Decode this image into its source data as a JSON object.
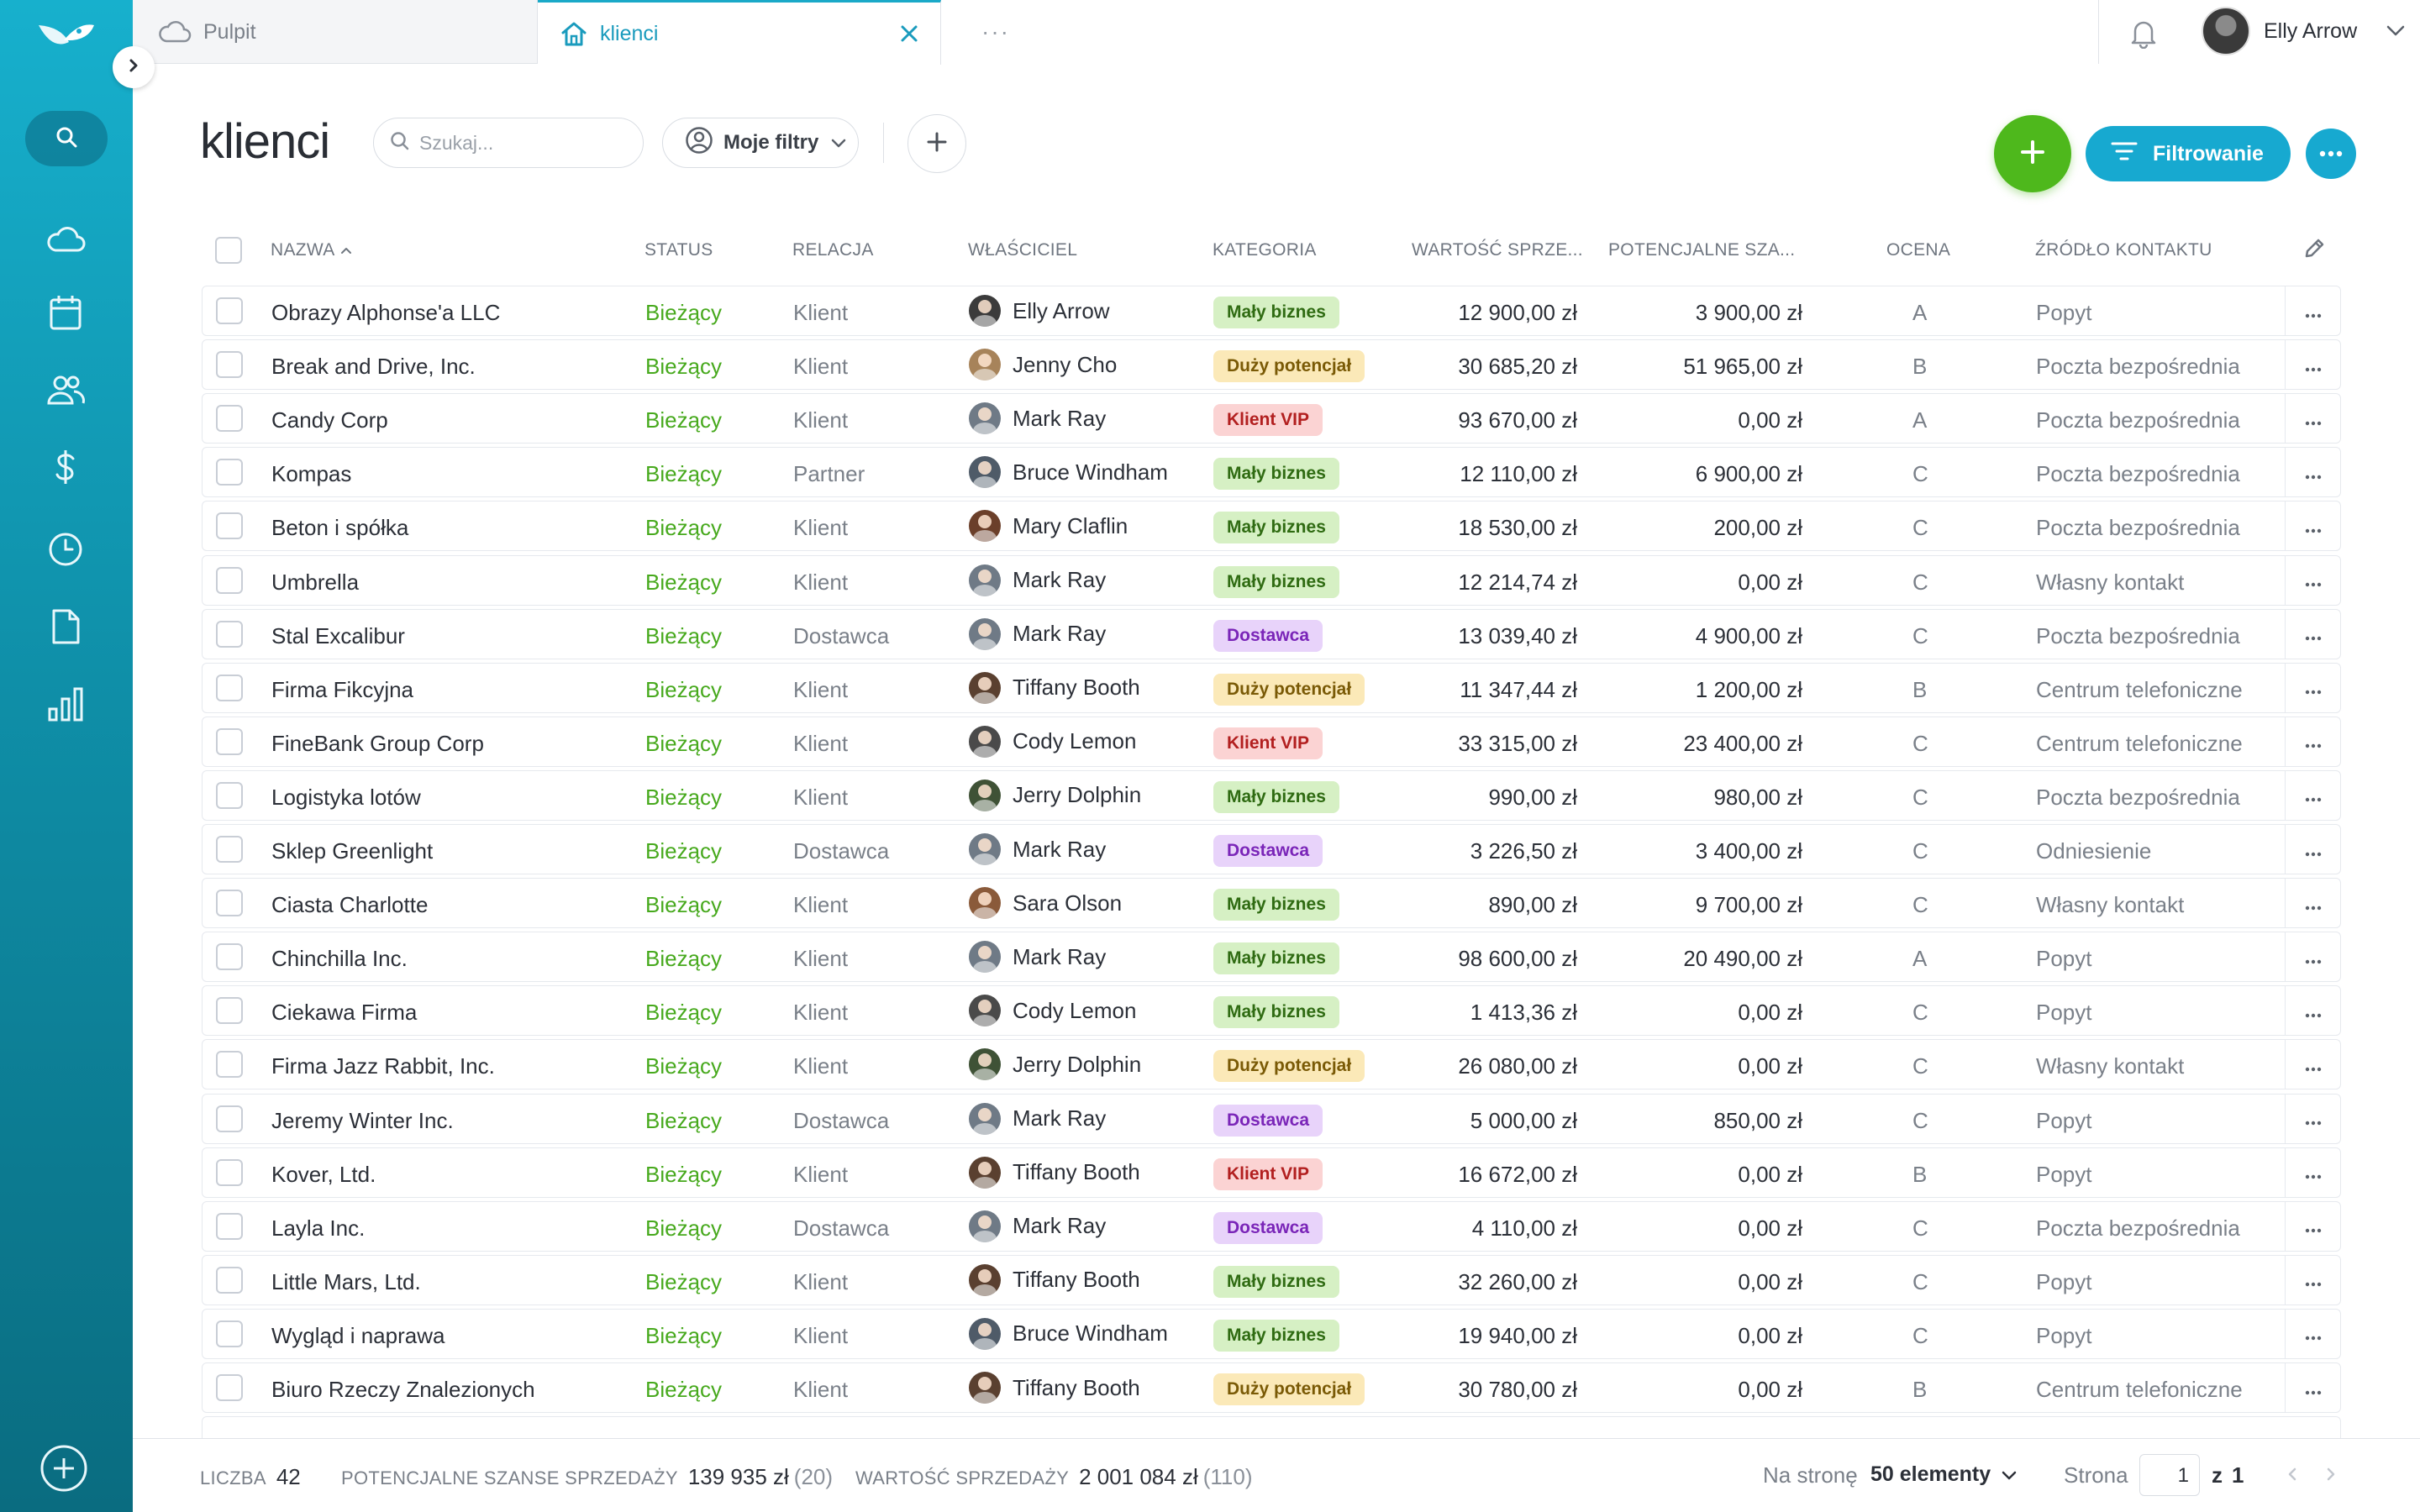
{
  "colors": {
    "accent": "#17a9d0",
    "add_green": "#4eb81c",
    "status_green": "#47a91d"
  },
  "tabs": {
    "home_label": "Pulpit",
    "active_label": "klienci",
    "more_label": "···"
  },
  "user": {
    "name": "Elly Arrow"
  },
  "page": {
    "title": "klienci"
  },
  "toolbar": {
    "search_placeholder": "Szukaj...",
    "my_filters_label": "Moje filtry",
    "filter_button_label": "Filtrowanie"
  },
  "table": {
    "columns": {
      "name": "NAZWA",
      "status": "STATUS",
      "relation": "RELACJA",
      "owner": "WŁAŚCICIEL",
      "category": "KATEGORIA",
      "value": "WARTOŚĆ SPRZE...",
      "potential": "POTENCJALNE SZA...",
      "rating": "OCENA",
      "source": "ŹRÓDŁO KONTAKTU"
    },
    "rows": [
      {
        "name": "Obrazy Alphonse'a LLC",
        "status": "Bieżący",
        "relation": "Klient",
        "owner": "Elly Arrow",
        "category": "Mały biznes",
        "value": "12 900,00 zł",
        "potential": "3 900,00 zł",
        "rating": "A",
        "source": "Popyt"
      },
      {
        "name": "Break and Drive, Inc.",
        "status": "Bieżący",
        "relation": "Klient",
        "owner": "Jenny Cho",
        "category": "Duży potencjał",
        "value": "30 685,20 zł",
        "potential": "51 965,00 zł",
        "rating": "B",
        "source": "Poczta bezpośrednia"
      },
      {
        "name": "Candy Corp",
        "status": "Bieżący",
        "relation": "Klient",
        "owner": "Mark Ray",
        "category": "Klient VIP",
        "value": "93 670,00 zł",
        "potential": "0,00 zł",
        "rating": "A",
        "source": "Poczta bezpośrednia"
      },
      {
        "name": "Kompas",
        "status": "Bieżący",
        "relation": "Partner",
        "owner": "Bruce Windham",
        "category": "Mały biznes",
        "value": "12 110,00 zł",
        "potential": "6 900,00 zł",
        "rating": "C",
        "source": "Poczta bezpośrednia"
      },
      {
        "name": "Beton i spółka",
        "status": "Bieżący",
        "relation": "Klient",
        "owner": "Mary Claflin",
        "category": "Mały biznes",
        "value": "18 530,00 zł",
        "potential": "200,00 zł",
        "rating": "C",
        "source": "Poczta bezpośrednia"
      },
      {
        "name": "Umbrella",
        "status": "Bieżący",
        "relation": "Klient",
        "owner": "Mark Ray",
        "category": "Mały biznes",
        "value": "12 214,74 zł",
        "potential": "0,00 zł",
        "rating": "C",
        "source": "Własny kontakt"
      },
      {
        "name": "Stal Excalibur",
        "status": "Bieżący",
        "relation": "Dostawca",
        "owner": "Mark Ray",
        "category": "Dostawca",
        "value": "13 039,40 zł",
        "potential": "4 900,00 zł",
        "rating": "C",
        "source": "Poczta bezpośrednia"
      },
      {
        "name": "Firma Fikcyjna",
        "status": "Bieżący",
        "relation": "Klient",
        "owner": "Tiffany Booth",
        "category": "Duży potencjał",
        "value": "11 347,44 zł",
        "potential": "1 200,00 zł",
        "rating": "B",
        "source": "Centrum telefoniczne"
      },
      {
        "name": "FineBank Group Corp",
        "status": "Bieżący",
        "relation": "Klient",
        "owner": "Cody Lemon",
        "category": "Klient VIP",
        "value": "33 315,00 zł",
        "potential": "23 400,00 zł",
        "rating": "C",
        "source": "Centrum telefoniczne"
      },
      {
        "name": "Logistyka lotów",
        "status": "Bieżący",
        "relation": "Klient",
        "owner": "Jerry Dolphin",
        "category": "Mały biznes",
        "value": "990,00 zł",
        "potential": "980,00 zł",
        "rating": "C",
        "source": "Poczta bezpośrednia"
      },
      {
        "name": "Sklep Greenlight",
        "status": "Bieżący",
        "relation": "Dostawca",
        "owner": "Mark Ray",
        "category": "Dostawca",
        "value": "3 226,50 zł",
        "potential": "3 400,00 zł",
        "rating": "C",
        "source": "Odniesienie"
      },
      {
        "name": "Ciasta Charlotte",
        "status": "Bieżący",
        "relation": "Klient",
        "owner": "Sara Olson",
        "category": "Mały biznes",
        "value": "890,00 zł",
        "potential": "9 700,00 zł",
        "rating": "C",
        "source": "Własny kontakt"
      },
      {
        "name": "Chinchilla Inc.",
        "status": "Bieżący",
        "relation": "Klient",
        "owner": "Mark Ray",
        "category": "Mały biznes",
        "value": "98 600,00 zł",
        "potential": "20 490,00 zł",
        "rating": "A",
        "source": "Popyt"
      },
      {
        "name": "Ciekawa Firma",
        "status": "Bieżący",
        "relation": "Klient",
        "owner": "Cody Lemon",
        "category": "Mały biznes",
        "value": "1 413,36 zł",
        "potential": "0,00 zł",
        "rating": "C",
        "source": "Popyt"
      },
      {
        "name": "Firma Jazz Rabbit, Inc.",
        "status": "Bieżący",
        "relation": "Klient",
        "owner": "Jerry Dolphin",
        "category": "Duży potencjał",
        "value": "26 080,00 zł",
        "potential": "0,00 zł",
        "rating": "C",
        "source": "Własny kontakt"
      },
      {
        "name": "Jeremy Winter Inc.",
        "status": "Bieżący",
        "relation": "Dostawca",
        "owner": "Mark Ray",
        "category": "Dostawca",
        "value": "5 000,00 zł",
        "potential": "850,00 zł",
        "rating": "C",
        "source": "Popyt"
      },
      {
        "name": "Kover, Ltd.",
        "status": "Bieżący",
        "relation": "Klient",
        "owner": "Tiffany Booth",
        "category": "Klient VIP",
        "value": "16 672,00 zł",
        "potential": "0,00 zł",
        "rating": "B",
        "source": "Popyt"
      },
      {
        "name": "Layla Inc.",
        "status": "Bieżący",
        "relation": "Dostawca",
        "owner": "Mark Ray",
        "category": "Dostawca",
        "value": "4 110,00 zł",
        "potential": "0,00 zł",
        "rating": "C",
        "source": "Poczta bezpośrednia"
      },
      {
        "name": "Little Mars, Ltd.",
        "status": "Bieżący",
        "relation": "Klient",
        "owner": "Tiffany Booth",
        "category": "Mały biznes",
        "value": "32 260,00 zł",
        "potential": "0,00 zł",
        "rating": "C",
        "source": "Popyt"
      },
      {
        "name": "Wygląd i naprawa",
        "status": "Bieżący",
        "relation": "Klient",
        "owner": "Bruce Windham",
        "category": "Mały biznes",
        "value": "19 940,00 zł",
        "potential": "0,00 zł",
        "rating": "C",
        "source": "Popyt"
      },
      {
        "name": "Biuro Rzeczy Znalezionych",
        "status": "Bieżący",
        "relation": "Klient",
        "owner": "Tiffany Booth",
        "category": "Duży potencjał",
        "value": "30 780,00 zł",
        "potential": "0,00 zł",
        "rating": "B",
        "source": "Centrum telefoniczne"
      }
    ]
  },
  "category_colors": {
    "Mały biznes": {
      "bg": "#d6f0c4",
      "fg": "#2f6b12"
    },
    "Duży potencjał": {
      "bg": "#fbe9b8",
      "fg": "#7a5a06"
    },
    "Klient VIP": {
      "bg": "#fbd3d3",
      "fg": "#b21f1f"
    },
    "Dostawca": {
      "bg": "#e8d3fa",
      "fg": "#7a25b8"
    }
  },
  "owner_colors": {
    "Elly Arrow": "#3b3b3b",
    "Jenny Cho": "#a7835a",
    "Mark Ray": "#6f7a86",
    "Bruce Windham": "#4f5b68",
    "Mary Claflin": "#6b3f2a",
    "Tiffany Booth": "#5a4030",
    "Cody Lemon": "#4a4a4a",
    "Jerry Dolphin": "#3f5236",
    "Sara Olson": "#8a5a3a"
  },
  "footer": {
    "count_label": "LICZBA",
    "count_value": "42",
    "potential_label": "POTENCJALNE SZANSE SPRZEDAŻY",
    "potential_value": "139 935 zł",
    "potential_count": "(20)",
    "sales_label": "WARTOŚĆ SPRZEDAŻY",
    "sales_value": "2 001 084 zł",
    "sales_count": "(110)",
    "per_page_label": "Na stronę",
    "per_page_value": "50 elementy",
    "page_label": "Strona",
    "page_current": "1",
    "page_of": "z",
    "page_total": "1"
  }
}
